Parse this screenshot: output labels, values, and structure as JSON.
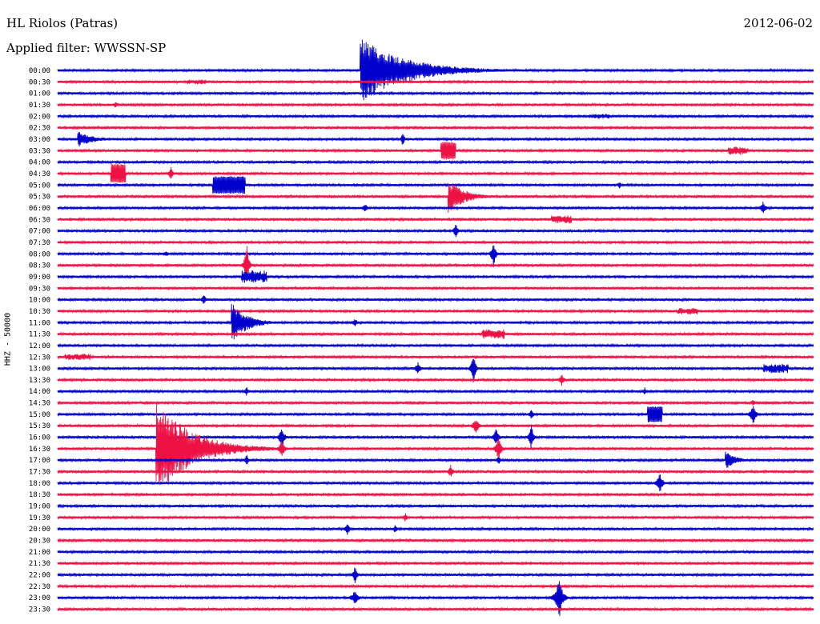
{
  "header": {
    "station": "HL Riolos (Patras)",
    "filter": "Applied filter: WWSSN-SP",
    "date": "2012-06-02"
  },
  "chart_data": {
    "type": "line",
    "ylabel": "HHZ - 50000",
    "tick_labels": [
      "00:00",
      "00:30",
      "01:00",
      "01:30",
      "02:00",
      "02:30",
      "03:00",
      "03:30",
      "04:00",
      "04:30",
      "05:00",
      "05:30",
      "06:00",
      "06:30",
      "07:00",
      "07:30",
      "08:00",
      "08:30",
      "09:00",
      "09:30",
      "10:00",
      "10:30",
      "11:00",
      "11:30",
      "12:00",
      "12:30",
      "13:00",
      "13:30",
      "14:00",
      "14:30",
      "15:00",
      "15:30",
      "16:00",
      "16:30",
      "17:00",
      "17:30",
      "18:00",
      "18:30",
      "19:00",
      "19:30",
      "20:00",
      "20:30",
      "21:00",
      "21:30",
      "22:00",
      "22:30",
      "23:00",
      "23:30"
    ],
    "trace_minutes": 30,
    "colors": [
      "#0000cc",
      "#ee1144"
    ],
    "grid": false,
    "events": [
      {
        "trace": 0,
        "minute": 12.0,
        "amplitude": 42,
        "duration": 2.5,
        "kind": "quake"
      },
      {
        "trace": 1,
        "minute": 5.5,
        "amplitude": 3,
        "duration": 0.8,
        "kind": "burst"
      },
      {
        "trace": 3,
        "minute": 2.3,
        "amplitude": 5,
        "duration": 0.3,
        "kind": "spike"
      },
      {
        "trace": 4,
        "minute": 21.5,
        "amplitude": 3,
        "duration": 0.8,
        "kind": "burst"
      },
      {
        "trace": 6,
        "minute": 0.8,
        "amplitude": 10,
        "duration": 0.9,
        "kind": "quake"
      },
      {
        "trace": 6,
        "minute": 13.7,
        "amplitude": 12,
        "duration": 0.2,
        "kind": "spike"
      },
      {
        "trace": 7,
        "minute": 15.5,
        "amplitude": 11,
        "duration": 0.6,
        "kind": "block"
      },
      {
        "trace": 7,
        "minute": 27.0,
        "amplitude": 5,
        "duration": 0.8,
        "kind": "burst"
      },
      {
        "trace": 9,
        "minute": 2.4,
        "amplitude": 12,
        "duration": 0.6,
        "kind": "block"
      },
      {
        "trace": 9,
        "minute": 4.5,
        "amplitude": 10,
        "duration": 0.3,
        "kind": "spike"
      },
      {
        "trace": 10,
        "minute": 6.8,
        "amplitude": 11,
        "duration": 1.3,
        "kind": "block"
      },
      {
        "trace": 10,
        "minute": 22.3,
        "amplitude": 5,
        "duration": 0.3,
        "kind": "spike"
      },
      {
        "trace": 11,
        "minute": 15.5,
        "amplitude": 22,
        "duration": 0.9,
        "kind": "quake"
      },
      {
        "trace": 12,
        "minute": 12.2,
        "amplitude": 6,
        "duration": 0.4,
        "kind": "spike"
      },
      {
        "trace": 12,
        "minute": 28.0,
        "amplitude": 9,
        "duration": 0.4,
        "kind": "spike"
      },
      {
        "trace": 13,
        "minute": 20.0,
        "amplitude": 5,
        "duration": 0.8,
        "kind": "burst"
      },
      {
        "trace": 14,
        "minute": 15.8,
        "amplitude": 10,
        "duration": 0.3,
        "kind": "spike"
      },
      {
        "trace": 16,
        "minute": 17.3,
        "amplitude": 20,
        "duration": 0.3,
        "kind": "spike"
      },
      {
        "trace": 16,
        "minute": 4.3,
        "amplitude": 4,
        "duration": 0.5,
        "kind": "spike"
      },
      {
        "trace": 17,
        "minute": 7.5,
        "amplitude": 30,
        "duration": 0.3,
        "kind": "spike"
      },
      {
        "trace": 18,
        "minute": 7.8,
        "amplitude": 8,
        "duration": 1.0,
        "kind": "burst"
      },
      {
        "trace": 20,
        "minute": 5.8,
        "amplitude": 8,
        "duration": 0.3,
        "kind": "spike"
      },
      {
        "trace": 21,
        "minute": 25.0,
        "amplitude": 4,
        "duration": 0.8,
        "kind": "burst"
      },
      {
        "trace": 22,
        "minute": 6.9,
        "amplitude": 25,
        "duration": 0.9,
        "kind": "quake"
      },
      {
        "trace": 22,
        "minute": 11.8,
        "amplitude": 5,
        "duration": 0.5,
        "kind": "spike"
      },
      {
        "trace": 23,
        "minute": 17.3,
        "amplitude": 6,
        "duration": 0.9,
        "kind": "burst"
      },
      {
        "trace": 25,
        "minute": 0.8,
        "amplitude": 4,
        "duration": 1.0,
        "kind": "burst"
      },
      {
        "trace": 26,
        "minute": 14.3,
        "amplitude": 8,
        "duration": 0.4,
        "kind": "spike"
      },
      {
        "trace": 26,
        "minute": 16.5,
        "amplitude": 22,
        "duration": 0.3,
        "kind": "spike"
      },
      {
        "trace": 26,
        "minute": 28.5,
        "amplitude": 6,
        "duration": 1.0,
        "kind": "burst"
      },
      {
        "trace": 27,
        "minute": 20.0,
        "amplitude": 8,
        "duration": 0.4,
        "kind": "spike"
      },
      {
        "trace": 28,
        "minute": 7.5,
        "amplitude": 6,
        "duration": 0.3,
        "kind": "spike"
      },
      {
        "trace": 28,
        "minute": 23.3,
        "amplitude": 5,
        "duration": 0.3,
        "kind": "spike"
      },
      {
        "trace": 29,
        "minute": 27.6,
        "amplitude": 5,
        "duration": 0.3,
        "kind": "spike"
      },
      {
        "trace": 30,
        "minute": 23.7,
        "amplitude": 10,
        "duration": 0.6,
        "kind": "block"
      },
      {
        "trace": 30,
        "minute": 27.6,
        "amplitude": 14,
        "duration": 0.4,
        "kind": "spike"
      },
      {
        "trace": 30,
        "minute": 18.8,
        "amplitude": 8,
        "duration": 0.3,
        "kind": "spike"
      },
      {
        "trace": 31,
        "minute": 16.6,
        "amplitude": 10,
        "duration": 0.5,
        "kind": "spike"
      },
      {
        "trace": 32,
        "minute": 8.9,
        "amplitude": 14,
        "duration": 0.4,
        "kind": "spike"
      },
      {
        "trace": 32,
        "minute": 17.4,
        "amplitude": 12,
        "duration": 0.4,
        "kind": "spike"
      },
      {
        "trace": 32,
        "minute": 18.8,
        "amplitude": 18,
        "duration": 0.3,
        "kind": "spike"
      },
      {
        "trace": 33,
        "minute": 3.9,
        "amplitude": 60,
        "duration": 2.0,
        "kind": "quake"
      },
      {
        "trace": 33,
        "minute": 17.5,
        "amplitude": 16,
        "duration": 0.4,
        "kind": "spike"
      },
      {
        "trace": 33,
        "minute": 8.9,
        "amplitude": 12,
        "duration": 0.4,
        "kind": "spike"
      },
      {
        "trace": 34,
        "minute": 7.5,
        "amplitude": 8,
        "duration": 0.3,
        "kind": "spike"
      },
      {
        "trace": 34,
        "minute": 17.5,
        "amplitude": 6,
        "duration": 0.3,
        "kind": "spike"
      },
      {
        "trace": 34,
        "minute": 26.5,
        "amplitude": 12,
        "duration": 0.6,
        "kind": "quake"
      },
      {
        "trace": 35,
        "minute": 15.6,
        "amplitude": 10,
        "duration": 0.3,
        "kind": "spike"
      },
      {
        "trace": 36,
        "minute": 23.9,
        "amplitude": 14,
        "duration": 0.4,
        "kind": "spike"
      },
      {
        "trace": 39,
        "minute": 13.8,
        "amplitude": 6,
        "duration": 0.3,
        "kind": "spike"
      },
      {
        "trace": 40,
        "minute": 11.5,
        "amplitude": 10,
        "duration": 0.3,
        "kind": "spike"
      },
      {
        "trace": 40,
        "minute": 13.4,
        "amplitude": 6,
        "duration": 0.3,
        "kind": "spike"
      },
      {
        "trace": 44,
        "minute": 11.8,
        "amplitude": 12,
        "duration": 0.3,
        "kind": "spike"
      },
      {
        "trace": 46,
        "minute": 11.8,
        "amplitude": 10,
        "duration": 0.5,
        "kind": "spike"
      },
      {
        "trace": 46,
        "minute": 8.8,
        "amplitude": 3,
        "duration": 0.3,
        "kind": "spike"
      },
      {
        "trace": 46,
        "minute": 19.9,
        "amplitude": 28,
        "duration": 0.5,
        "kind": "spike"
      }
    ]
  }
}
